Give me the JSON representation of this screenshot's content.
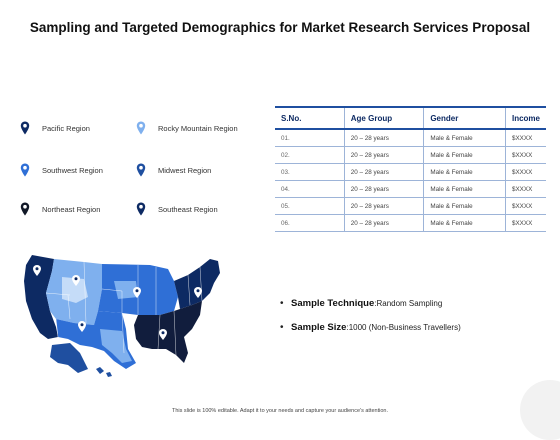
{
  "title": "Sampling and Targeted Demographics for Market Research Services Proposal",
  "regions": [
    {
      "label": "Pacific Region",
      "icon": "map-pin-icon"
    },
    {
      "label": "Rocky Mountain Region",
      "icon": "map-pin-icon"
    },
    {
      "label": "Southwest Region",
      "icon": "map-pin-icon"
    },
    {
      "label": "Midwest Region",
      "icon": "map-pin-icon"
    },
    {
      "label": "Northeast Region",
      "icon": "map-pin-icon"
    },
    {
      "label": "Southeast Region",
      "icon": "map-pin-icon"
    }
  ],
  "table": {
    "headers": [
      "S.No.",
      "Age Group",
      "Gender",
      "Income"
    ],
    "rows": [
      [
        "01.",
        "20 – 28 years",
        "Male & Female",
        "$XXXX"
      ],
      [
        "02.",
        "20 – 28 years",
        "Male & Female",
        "$XXXX"
      ],
      [
        "03.",
        "20 – 28 years",
        "Male & Female",
        "$XXXX"
      ],
      [
        "04.",
        "20 – 28 years",
        "Male & Female",
        "$XXXX"
      ],
      [
        "05.",
        "20 – 28 years",
        "Male & Female",
        "$XXXX"
      ],
      [
        "06.",
        "20 – 28 years",
        "Male & Female",
        "$XXXX"
      ]
    ]
  },
  "bullets": [
    {
      "label": "Sample Technique",
      "sep": ": ",
      "value": "Random Sampling"
    },
    {
      "label": "Sample Size",
      "sep": ": ",
      "value": "1000 (Non-Business Travellers)"
    }
  ],
  "footer": "This slide is 100% editable. Adapt it to your needs and capture your audience's attention.",
  "colors": {
    "navy": "#0d2a63",
    "medium_blue": "#2f6fd6",
    "light_blue": "#7fb0ee",
    "pale_blue": "#c5dcf8"
  }
}
